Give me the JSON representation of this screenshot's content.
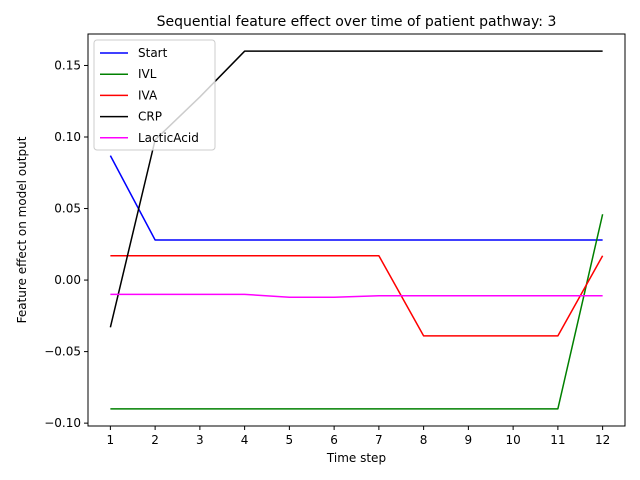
{
  "chart_data": {
    "type": "line",
    "title": "Sequential feature effect over time of patient pathway: 3",
    "xlabel": "Time step",
    "ylabel": "Feature effect on model output",
    "x": [
      1,
      2,
      3,
      4,
      5,
      6,
      7,
      8,
      9,
      10,
      11,
      12
    ],
    "xticks": [
      "1",
      "2",
      "3",
      "4",
      "5",
      "6",
      "7",
      "8",
      "9",
      "10",
      "11",
      "12"
    ],
    "xlim": [
      0.5,
      12.5
    ],
    "ylim": [
      -0.102,
      0.172
    ],
    "yticks": [
      -0.1,
      -0.05,
      0.0,
      0.05,
      0.1,
      0.15
    ],
    "ytick_labels": [
      "−0.10",
      "−0.05",
      "0.00",
      "0.05",
      "0.10",
      "0.15"
    ],
    "grid": false,
    "legend_position": "top-left",
    "series": [
      {
        "name": "Start",
        "color": "#0000ff",
        "values": [
          0.087,
          0.028,
          0.028,
          0.028,
          0.028,
          0.028,
          0.028,
          0.028,
          0.028,
          0.028,
          0.028,
          0.028
        ]
      },
      {
        "name": "IVL",
        "color": "#008000",
        "values": [
          -0.09,
          -0.09,
          -0.09,
          -0.09,
          -0.09,
          -0.09,
          -0.09,
          -0.09,
          -0.09,
          -0.09,
          -0.09,
          0.046
        ]
      },
      {
        "name": "IVA",
        "color": "#ff0000",
        "values": [
          0.017,
          0.017,
          0.017,
          0.017,
          0.017,
          0.017,
          0.017,
          -0.039,
          -0.039,
          -0.039,
          -0.039,
          0.017
        ]
      },
      {
        "name": "CRP",
        "color": "#000000",
        "values": [
          -0.033,
          0.098,
          0.128,
          0.16,
          0.16,
          0.16,
          0.16,
          0.16,
          0.16,
          0.16,
          0.16,
          0.16
        ]
      },
      {
        "name": "LacticAcid",
        "color": "#ff00ff",
        "values": [
          -0.01,
          -0.01,
          -0.01,
          -0.01,
          -0.012,
          -0.012,
          -0.011,
          -0.011,
          -0.011,
          -0.011,
          -0.011,
          -0.011
        ]
      }
    ]
  }
}
